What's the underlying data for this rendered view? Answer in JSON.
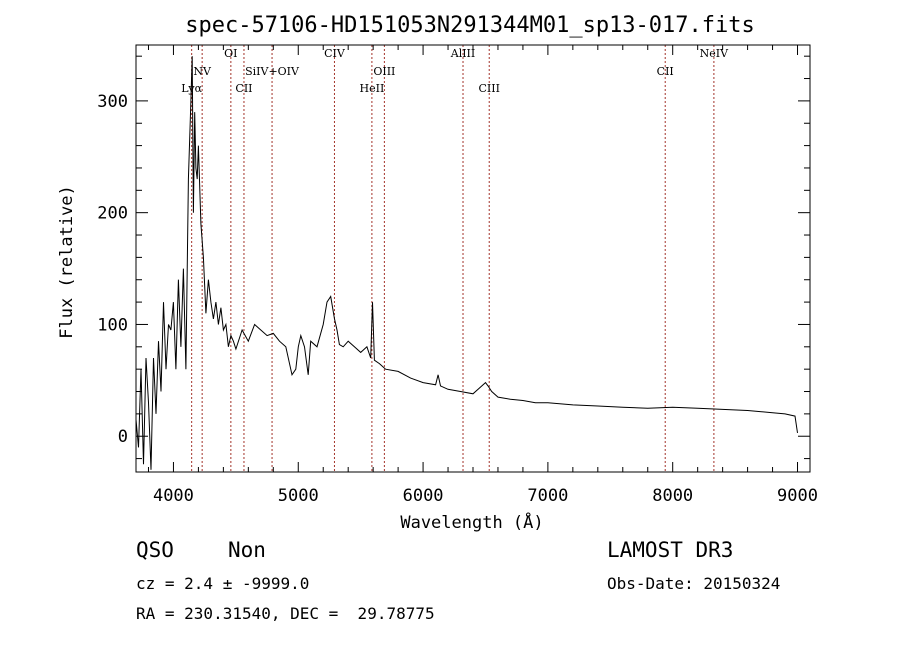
{
  "chart_data": {
    "type": "line",
    "title": "spec-57106-HD151053N291344M01_sp13-017.fits",
    "xlabel": "Wavelength (Å)",
    "ylabel": "Flux (relative)",
    "xlim": [
      3700,
      9100
    ],
    "ylim": [
      -32,
      350
    ],
    "xticks": [
      4000,
      5000,
      6000,
      7000,
      8000,
      9000
    ],
    "yticks": [
      0,
      100,
      200,
      300
    ],
    "spectrum": {
      "name": "flux",
      "x": [
        3700,
        3720,
        3740,
        3760,
        3780,
        3800,
        3820,
        3840,
        3860,
        3880,
        3900,
        3920,
        3940,
        3960,
        3980,
        4000,
        4020,
        4040,
        4060,
        4080,
        4100,
        4120,
        4140,
        4150,
        4160,
        4170,
        4180,
        4190,
        4200,
        4220,
        4240,
        4260,
        4280,
        4300,
        4320,
        4340,
        4360,
        4380,
        4400,
        4420,
        4440,
        4460,
        4480,
        4500,
        4550,
        4600,
        4650,
        4700,
        4750,
        4800,
        4850,
        4900,
        4950,
        4980,
        5000,
        5020,
        5050,
        5080,
        5100,
        5150,
        5200,
        5230,
        5260,
        5290,
        5310,
        5330,
        5360,
        5400,
        5450,
        5500,
        5550,
        5580,
        5595,
        5610,
        5650,
        5700,
        5800,
        5900,
        6000,
        6100,
        6120,
        6140,
        6200,
        6300,
        6400,
        6450,
        6500,
        6520,
        6550,
        6600,
        6700,
        6800,
        6900,
        7000,
        7200,
        7400,
        7600,
        7800,
        8000,
        8200,
        8400,
        8600,
        8700,
        8800,
        8900,
        8980,
        9000
      ],
      "y": [
        15,
        -10,
        60,
        -25,
        70,
        30,
        -30,
        70,
        20,
        85,
        40,
        120,
        60,
        100,
        95,
        120,
        60,
        140,
        80,
        150,
        60,
        230,
        300,
        340,
        200,
        290,
        240,
        230,
        260,
        190,
        160,
        110,
        140,
        120,
        105,
        120,
        100,
        115,
        95,
        100,
        80,
        90,
        85,
        78,
        95,
        85,
        100,
        95,
        90,
        92,
        85,
        80,
        55,
        60,
        80,
        90,
        80,
        55,
        85,
        80,
        100,
        120,
        125,
        105,
        95,
        82,
        80,
        85,
        80,
        75,
        80,
        70,
        120,
        68,
        65,
        60,
        58,
        52,
        48,
        46,
        55,
        45,
        42,
        40,
        38,
        43,
        48,
        45,
        40,
        35,
        33,
        32,
        30,
        30,
        28,
        27,
        26,
        25,
        26,
        25,
        24,
        23,
        22,
        21,
        20,
        18,
        3
      ]
    },
    "emission_lines": [
      {
        "name": "Lyα",
        "wavelength": 4146
      },
      {
        "name": "NV",
        "wavelength": 4230
      },
      {
        "name": "OI",
        "wavelength": 4460
      },
      {
        "name": "CII",
        "wavelength": 4565
      },
      {
        "name": "SiIV+OIV",
        "wavelength": 4790
      },
      {
        "name": "CIV",
        "wavelength": 5290
      },
      {
        "name": "HeII",
        "wavelength": 5590
      },
      {
        "name": "OIII",
        "wavelength": 5690
      },
      {
        "name": "AlIII",
        "wavelength": 6320
      },
      {
        "name": "CIII",
        "wavelength": 6530
      },
      {
        "name": "CII",
        "wavelength": 7940
      },
      {
        "name": "NeIV",
        "wavelength": 8330
      }
    ]
  },
  "info": {
    "class": "QSO",
    "subclass": "Non",
    "survey": "LAMOST DR3",
    "cz": "cz = 2.4 ± -9999.0",
    "obs_date": "Obs-Date: 20150324",
    "coords": "RA = 230.31540, DEC =  29.78775"
  },
  "colors": {
    "axis": "#000000",
    "spectrum": "#000000",
    "line_marker": "#a3332a"
  }
}
